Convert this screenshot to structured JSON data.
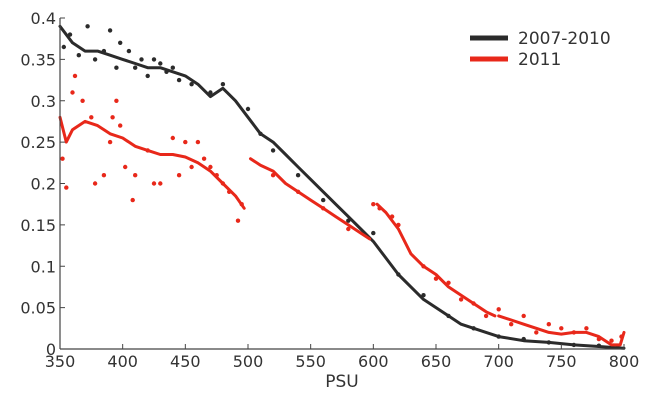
{
  "chart_data": {
    "type": "scatter",
    "title": "",
    "xlabel": "PSU",
    "ylabel": "",
    "xlim": [
      350,
      800
    ],
    "ylim": [
      0,
      0.4
    ],
    "grid": false,
    "legend_position": "top-right",
    "x_ticks": [
      "350",
      "400",
      "450",
      "500",
      "550",
      "600",
      "650",
      "700",
      "750",
      "800"
    ],
    "y_ticks": [
      "0",
      "0.05",
      "0.1",
      "0.15",
      "0.2",
      "0.25",
      "0.3",
      "0.35",
      "0.4"
    ],
    "series": [
      {
        "name": "2007-2010",
        "color": "#2b2b2b",
        "trend": [
          [
            350,
            0.39
          ],
          [
            360,
            0.37
          ],
          [
            370,
            0.36
          ],
          [
            380,
            0.36
          ],
          [
            390,
            0.355
          ],
          [
            400,
            0.35
          ],
          [
            410,
            0.345
          ],
          [
            420,
            0.34
          ],
          [
            430,
            0.34
          ],
          [
            440,
            0.335
          ],
          [
            450,
            0.33
          ],
          [
            460,
            0.32
          ],
          [
            470,
            0.305
          ],
          [
            480,
            0.315
          ],
          [
            490,
            0.3
          ],
          [
            500,
            0.28
          ],
          [
            510,
            0.26
          ],
          [
            520,
            0.25
          ],
          [
            530,
            0.235
          ],
          [
            540,
            0.22
          ],
          [
            550,
            0.205
          ],
          [
            560,
            0.19
          ],
          [
            570,
            0.175
          ],
          [
            580,
            0.16
          ],
          [
            590,
            0.145
          ],
          [
            600,
            0.13
          ],
          [
            610,
            0.11
          ],
          [
            620,
            0.09
          ],
          [
            630,
            0.075
          ],
          [
            640,
            0.06
          ],
          [
            650,
            0.05
          ],
          [
            660,
            0.04
          ],
          [
            670,
            0.03
          ],
          [
            680,
            0.025
          ],
          [
            690,
            0.02
          ],
          [
            700,
            0.015
          ],
          [
            720,
            0.01
          ],
          [
            740,
            0.008
          ],
          [
            760,
            0.005
          ],
          [
            780,
            0.003
          ],
          [
            800,
            0.001
          ]
        ],
        "points": [
          [
            353,
            0.365
          ],
          [
            358,
            0.38
          ],
          [
            365,
            0.355
          ],
          [
            372,
            0.39
          ],
          [
            378,
            0.35
          ],
          [
            385,
            0.36
          ],
          [
            390,
            0.385
          ],
          [
            395,
            0.34
          ],
          [
            398,
            0.37
          ],
          [
            405,
            0.36
          ],
          [
            410,
            0.34
          ],
          [
            415,
            0.35
          ],
          [
            420,
            0.33
          ],
          [
            425,
            0.35
          ],
          [
            430,
            0.345
          ],
          [
            435,
            0.335
          ],
          [
            440,
            0.34
          ],
          [
            445,
            0.325
          ],
          [
            455,
            0.32
          ],
          [
            470,
            0.31
          ],
          [
            480,
            0.32
          ],
          [
            500,
            0.29
          ],
          [
            510,
            0.26
          ],
          [
            520,
            0.24
          ],
          [
            540,
            0.21
          ],
          [
            560,
            0.18
          ],
          [
            580,
            0.155
          ],
          [
            600,
            0.14
          ],
          [
            620,
            0.09
          ],
          [
            640,
            0.065
          ],
          [
            660,
            0.04
          ],
          [
            680,
            0.025
          ],
          [
            700,
            0.015
          ],
          [
            720,
            0.012
          ],
          [
            740,
            0.008
          ],
          [
            760,
            0.005
          ],
          [
            780,
            0.004
          ],
          [
            795,
            0.002
          ]
        ]
      },
      {
        "name": "2011",
        "color": "#e8281a",
        "trend_segments": [
          [
            [
              350,
              0.28
            ],
            [
              355,
              0.25
            ],
            [
              360,
              0.265
            ],
            [
              370,
              0.275
            ],
            [
              380,
              0.27
            ],
            [
              390,
              0.26
            ],
            [
              400,
              0.255
            ],
            [
              410,
              0.245
            ],
            [
              420,
              0.24
            ],
            [
              430,
              0.235
            ],
            [
              440,
              0.235
            ],
            [
              450,
              0.232
            ],
            [
              460,
              0.225
            ],
            [
              470,
              0.215
            ],
            [
              480,
              0.2
            ],
            [
              490,
              0.185
            ],
            [
              497,
              0.17
            ]
          ],
          [
            [
              502,
              0.23
            ],
            [
              510,
              0.222
            ],
            [
              520,
              0.215
            ],
            [
              530,
              0.2
            ],
            [
              540,
              0.19
            ],
            [
              550,
              0.18
            ],
            [
              560,
              0.17
            ],
            [
              570,
              0.16
            ],
            [
              580,
              0.15
            ],
            [
              590,
              0.14
            ],
            [
              597,
              0.133
            ]
          ],
          [
            [
              603,
              0.175
            ],
            [
              610,
              0.165
            ],
            [
              620,
              0.145
            ],
            [
              630,
              0.115
            ],
            [
              640,
              0.1
            ],
            [
              650,
              0.09
            ],
            [
              660,
              0.075
            ],
            [
              670,
              0.065
            ],
            [
              680,
              0.055
            ],
            [
              690,
              0.045
            ],
            [
              697,
              0.04
            ]
          ],
          [
            [
              700,
              0.04
            ],
            [
              710,
              0.035
            ],
            [
              720,
              0.03
            ],
            [
              730,
              0.025
            ],
            [
              740,
              0.02
            ],
            [
              750,
              0.018
            ],
            [
              760,
              0.02
            ],
            [
              770,
              0.02
            ],
            [
              780,
              0.015
            ],
            [
              790,
              0.005
            ],
            [
              797,
              0.005
            ],
            [
              800,
              0.02
            ]
          ]
        ],
        "points": [
          [
            352,
            0.23
          ],
          [
            355,
            0.195
          ],
          [
            360,
            0.31
          ],
          [
            362,
            0.33
          ],
          [
            368,
            0.3
          ],
          [
            375,
            0.28
          ],
          [
            378,
            0.2
          ],
          [
            385,
            0.21
          ],
          [
            390,
            0.25
          ],
          [
            392,
            0.28
          ],
          [
            395,
            0.3
          ],
          [
            398,
            0.27
          ],
          [
            402,
            0.22
          ],
          [
            408,
            0.18
          ],
          [
            410,
            0.21
          ],
          [
            420,
            0.24
          ],
          [
            425,
            0.2
          ],
          [
            430,
            0.2
          ],
          [
            440,
            0.255
          ],
          [
            445,
            0.21
          ],
          [
            450,
            0.25
          ],
          [
            455,
            0.22
          ],
          [
            460,
            0.25
          ],
          [
            465,
            0.23
          ],
          [
            470,
            0.22
          ],
          [
            475,
            0.21
          ],
          [
            480,
            0.2
          ],
          [
            485,
            0.19
          ],
          [
            492,
            0.155
          ],
          [
            495,
            0.175
          ],
          [
            520,
            0.21
          ],
          [
            540,
            0.19
          ],
          [
            560,
            0.17
          ],
          [
            580,
            0.145
          ],
          [
            600,
            0.175
          ],
          [
            605,
            0.17
          ],
          [
            615,
            0.16
          ],
          [
            620,
            0.15
          ],
          [
            640,
            0.1
          ],
          [
            650,
            0.085
          ],
          [
            660,
            0.08
          ],
          [
            670,
            0.06
          ],
          [
            680,
            0.055
          ],
          [
            690,
            0.04
          ],
          [
            700,
            0.048
          ],
          [
            710,
            0.03
          ],
          [
            720,
            0.04
          ],
          [
            730,
            0.02
          ],
          [
            740,
            0.03
          ],
          [
            750,
            0.025
          ],
          [
            760,
            0.02
          ],
          [
            770,
            0.025
          ],
          [
            780,
            0.012
          ],
          [
            790,
            0.01
          ],
          [
            798,
            0.015
          ]
        ]
      }
    ]
  }
}
